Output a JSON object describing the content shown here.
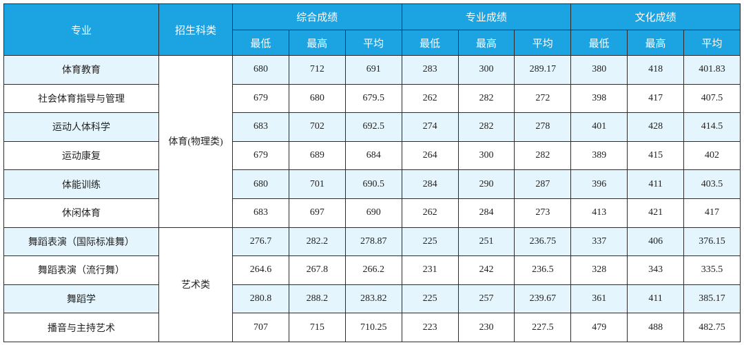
{
  "table": {
    "header": {
      "major": "专业",
      "category": "招生科类",
      "groups": [
        "综合成绩",
        "专业成绩",
        "文化成绩"
      ],
      "subheaders": [
        "最低",
        "最高",
        "平均"
      ]
    },
    "sections": [
      {
        "category": "体育(物理类)",
        "rows": [
          {
            "major": "体育教育",
            "scores": [
              "680",
              "712",
              "691",
              "283",
              "300",
              "289.17",
              "380",
              "418",
              "401.83"
            ]
          },
          {
            "major": "社会体育指导与管理",
            "scores": [
              "679",
              "680",
              "679.5",
              "262",
              "282",
              "272",
              "398",
              "417",
              "407.5"
            ]
          },
          {
            "major": "运动人体科学",
            "scores": [
              "683",
              "702",
              "692.5",
              "274",
              "282",
              "278",
              "401",
              "428",
              "414.5"
            ]
          },
          {
            "major": "运动康复",
            "scores": [
              "679",
              "689",
              "684",
              "264",
              "300",
              "282",
              "389",
              "415",
              "402"
            ]
          },
          {
            "major": "体能训练",
            "scores": [
              "680",
              "701",
              "690.5",
              "284",
              "290",
              "287",
              "396",
              "411",
              "403.5"
            ]
          },
          {
            "major": "休闲体育",
            "scores": [
              "683",
              "697",
              "690",
              "262",
              "284",
              "273",
              "413",
              "421",
              "417"
            ]
          }
        ]
      },
      {
        "category": "艺术类",
        "rows": [
          {
            "major": "舞蹈表演（国际标准舞）",
            "scores": [
              "276.7",
              "282.2",
              "278.87",
              "225",
              "251",
              "236.75",
              "337",
              "406",
              "376.15"
            ]
          },
          {
            "major": "舞蹈表演（流行舞）",
            "scores": [
              "264.6",
              "267.8",
              "266.2",
              "231",
              "242",
              "236.5",
              "328",
              "343",
              "335.5"
            ]
          },
          {
            "major": "舞蹈学",
            "scores": [
              "280.8",
              "288.2",
              "283.82",
              "225",
              "257",
              "239.67",
              "361",
              "411",
              "385.17"
            ]
          },
          {
            "major": "播音与主持艺术",
            "scores": [
              "707",
              "715",
              "710.25",
              "223",
              "230",
              "227.5",
              "479",
              "488",
              "482.75"
            ]
          }
        ]
      }
    ]
  }
}
